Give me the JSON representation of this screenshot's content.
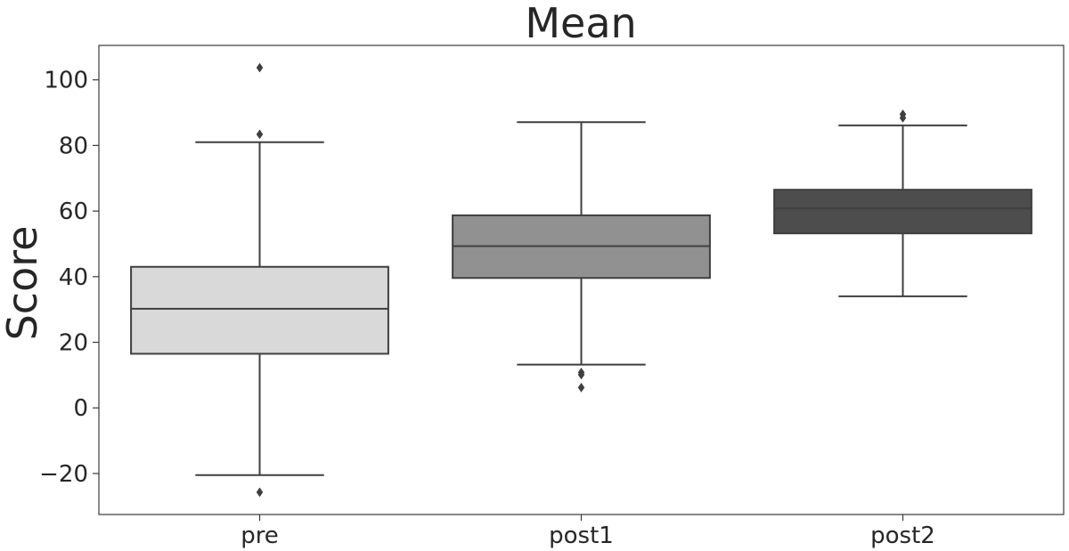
{
  "chart_data": {
    "type": "box",
    "title": "Mean",
    "ylabel": "Score",
    "xlabel": "",
    "ylim": [
      -32.5,
      110.5
    ],
    "yticks": [
      -20,
      0,
      20,
      40,
      60,
      80,
      100
    ],
    "ytick_labels": [
      "−20",
      "0",
      "20",
      "40",
      "60",
      "80",
      "100"
    ],
    "grid": false,
    "categories": [
      "pre",
      "post1",
      "post2"
    ],
    "boxes": [
      {
        "category": "pre",
        "whisker_low": -20.5,
        "q1": 16.5,
        "median": 30.2,
        "q3": 43,
        "whisker_high": 81,
        "outliers": [
          103.7,
          83.4,
          -25.7
        ],
        "color": "#d9d9d9"
      },
      {
        "category": "post1",
        "whisker_low": 13.2,
        "q1": 39.6,
        "median": 49.3,
        "q3": 58.7,
        "whisker_high": 87.1,
        "outliers": [
          10.8,
          10.1,
          6.2
        ],
        "color": "#919191"
      },
      {
        "category": "post2",
        "whisker_low": 34,
        "q1": 53.2,
        "median": 60.8,
        "q3": 66.5,
        "whisker_high": 86.1,
        "outliers": [
          89.5,
          88.4
        ],
        "color": "#4d4d4d"
      }
    ],
    "line_color": "#3f3f3f"
  }
}
